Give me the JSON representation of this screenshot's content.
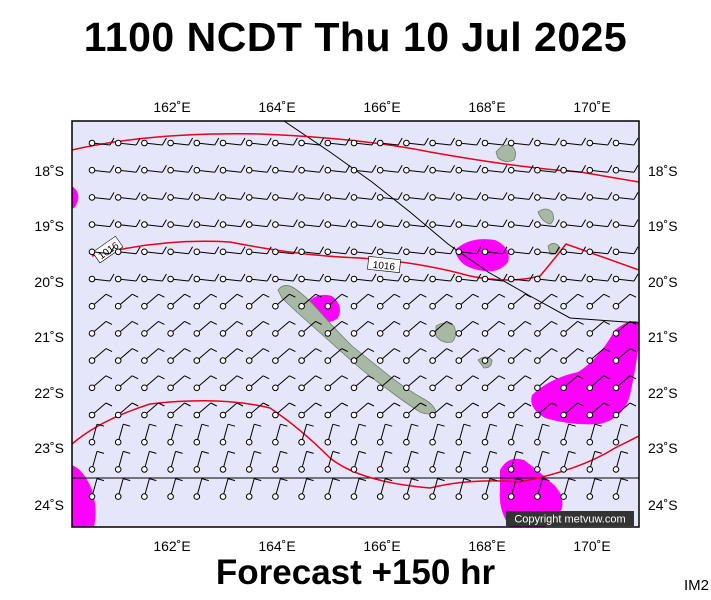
{
  "title": "1100 NCDT Thu 10 Jul 2025",
  "footer": "Forecast +150 hr",
  "corner_label": "IM2",
  "copyright": "Copyright metvuw.com",
  "map": {
    "lon_range": [
      160.2,
      171.0
    ],
    "lat_range": [
      -24.4,
      -17.2
    ],
    "lon_ticks": [
      162,
      164,
      166,
      168,
      170
    ],
    "lon_tick_labels": [
      "162˚E",
      "164˚E",
      "166˚E",
      "168˚E",
      "170˚E"
    ],
    "lat_ticks": [
      -18,
      -19,
      -20,
      -21,
      -22,
      -23,
      -24
    ],
    "lat_tick_labels": [
      "18˚S",
      "19˚S",
      "20˚S",
      "21˚S",
      "22˚S",
      "23˚S",
      "24˚S"
    ],
    "isobar_labels": [
      "1016",
      "1016"
    ],
    "colors": {
      "sea": "#e6e6fa",
      "isobar": "#e8001c",
      "rain": "#ff00ff",
      "land": "#a9b8a4",
      "frame": "#000000"
    }
  }
}
